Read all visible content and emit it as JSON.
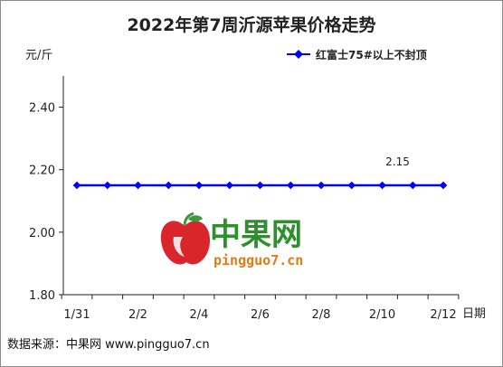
{
  "chart_data": {
    "type": "line",
    "title": "2022年第7周沂源苹果价格走势",
    "ylabel": "元/斤",
    "xlabel": "日期",
    "ylim": [
      1.8,
      2.5
    ],
    "yticks": [
      "1.80",
      "2.00",
      "2.20",
      "2.40"
    ],
    "ytick_values": [
      1.8,
      2.0,
      2.2,
      2.4
    ],
    "xticks": [
      "1/31",
      "2/2",
      "2/4",
      "2/6",
      "2/8",
      "2/10",
      "2/12"
    ],
    "grid": false,
    "legend_position": "top-right",
    "series": [
      {
        "name": "红富士75#以上不封顶",
        "color": "#0000ff",
        "values": [
          2.15,
          2.15,
          2.15,
          2.15,
          2.15,
          2.15,
          2.15,
          2.15,
          2.15,
          2.15,
          2.15,
          2.15,
          2.15
        ]
      }
    ],
    "data_label": {
      "index": 10,
      "text": "2.15"
    }
  },
  "watermark": {
    "brand": "中果网",
    "domain": "pingguo7.cn",
    "colors": {
      "brand": "#2f8f2f",
      "domain": "#e67b16",
      "apple": "#d8262c",
      "leaf": "#3a9a3a"
    }
  },
  "source": "数据来源：中果网 www.pingguo7.cn"
}
